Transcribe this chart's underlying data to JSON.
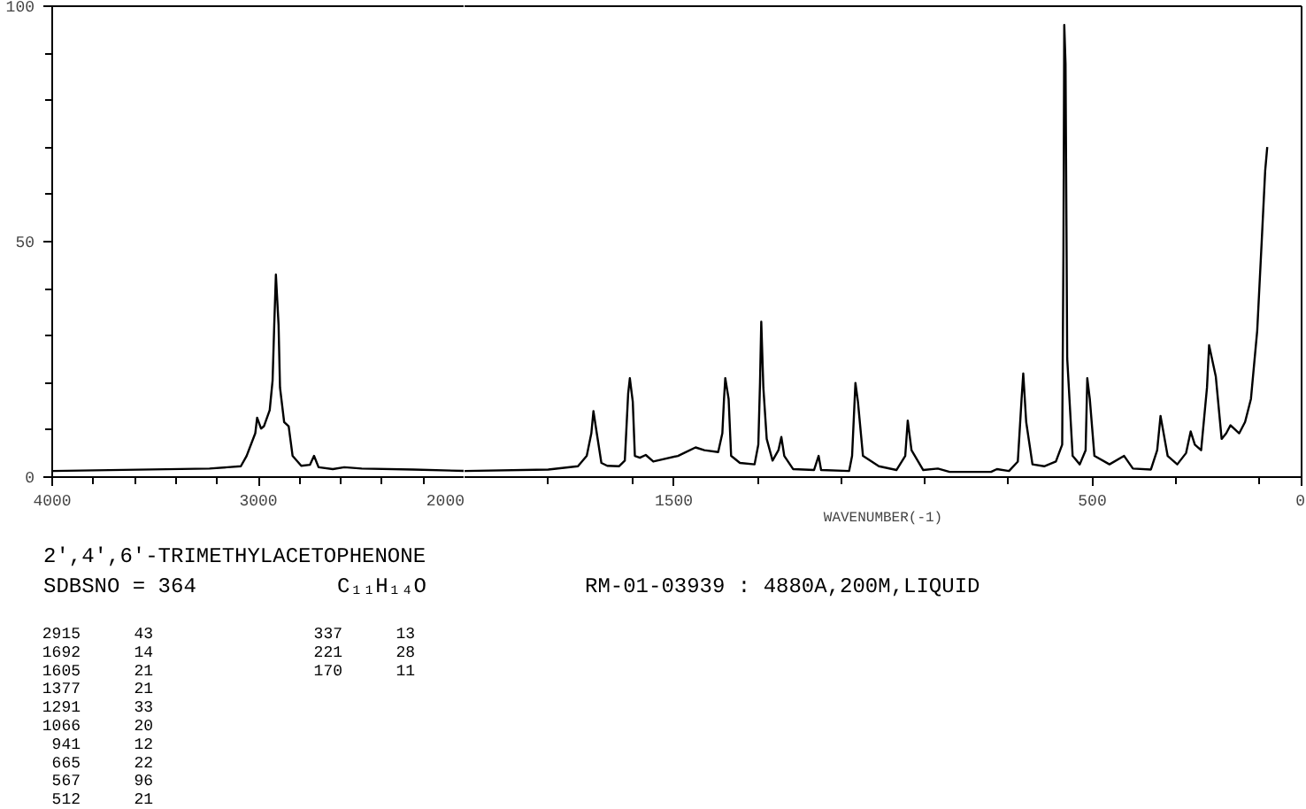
{
  "chart_data": [
    {
      "type": "line",
      "title": "2',4',6'-TRIMETHYLACETOPHENONE",
      "annotations": [
        "SDBSNO = 364",
        "C₁₁H₁₄O",
        "RM-01-03939 : 4880A,200M,LIQUID",
        "2915 43",
        "1692 14",
        "1605 21",
        "1377 21",
        "1291 33",
        "1066 20",
        "941 12",
        "665 22",
        "567 96",
        "512 21",
        "337 13",
        "221 28",
        "170 11"
      ],
      "x": [
        4000,
        3237,
        3085,
        3057,
        3015,
        3006,
        2987,
        2973,
        2945,
        2931,
        2923,
        2915,
        2902,
        2895,
        2875,
        2853,
        2834,
        2792,
        2750,
        2730,
        2708,
        2639,
        2583,
        2499,
        2249,
        2000
      ],
      "values": [
        1.3,
        1.8,
        2.3,
        4.5,
        9.3,
        12.6,
        10.3,
        10.8,
        14.2,
        20.5,
        32.3,
        43,
        32.3,
        19,
        11.7,
        10.8,
        4.5,
        2.4,
        2.6,
        4.5,
        2.1,
        1.7,
        2.1,
        1.8,
        1.6,
        1.3
      ],
      "color": "#000000",
      "xlim": [
        4000,
        2000
      ],
      "xticks": [
        4000,
        {
          "value": 3800,
          "label": null
        },
        {
          "value": 3600,
          "label": null
        },
        {
          "value": 3400,
          "label": null
        },
        {
          "value": 3200,
          "label": null
        },
        3000,
        {
          "value": 2800,
          "label": null
        },
        {
          "value": 2600,
          "label": null
        },
        {
          "value": 2400,
          "label": null
        },
        {
          "value": 2200,
          "label": null
        },
        2000
      ],
      "ylim": [
        0,
        100
      ],
      "yticks": [
        0,
        {
          "value": 10,
          "label": null
        },
        {
          "value": 20,
          "label": null
        },
        {
          "value": 30,
          "label": null
        },
        {
          "value": 40,
          "label": null
        },
        50,
        {
          "value": 60,
          "label": null
        },
        {
          "value": 70,
          "label": null
        },
        {
          "value": 80,
          "label": null
        },
        {
          "value": 90,
          "label": null
        },
        100
      ],
      "grid": false
    },
    {
      "type": "line",
      "xlabel": "WAVENUMBER(-1)",
      "x": [
        2000,
        1800,
        1729,
        1708,
        1697,
        1692,
        1684,
        1673,
        1659,
        1631,
        1617,
        1609,
        1605,
        1598,
        1593,
        1581,
        1567,
        1549,
        1490,
        1448,
        1427,
        1394,
        1384,
        1380,
        1377,
        1369,
        1363,
        1342,
        1307,
        1298,
        1294,
        1291,
        1286,
        1278,
        1264,
        1250,
        1243,
        1236,
        1215,
        1165,
        1154,
        1148,
        1081,
        1074,
        1066,
        1060,
        1048,
        1010,
        968,
        947,
        941,
        932,
        904,
        869,
        841,
        742,
        728,
        699,
        678,
        669,
        665,
        658,
        643,
        615,
        587,
        572,
        569,
        567,
        564,
        560,
        547,
        530,
        516,
        512,
        506,
        495,
        459,
        424,
        403,
        360,
        345,
        337,
        320,
        297,
        276,
        265,
        255,
        240,
        226,
        221,
        205,
        191,
        180,
        170,
        149,
        135,
        121,
        106,
        95,
        87,
        82
      ],
      "values": [
        1.3,
        1.6,
        2.3,
        4.5,
        9.3,
        14,
        9.3,
        3,
        2.4,
        2.3,
        3.5,
        17.8,
        21,
        16,
        4.5,
        4.1,
        4.7,
        3.3,
        4.5,
        6.3,
        5.7,
        5.3,
        9.3,
        16.6,
        21,
        16.6,
        4.5,
        3,
        2.7,
        6.9,
        20,
        33,
        19,
        8.1,
        3.5,
        5.7,
        8.5,
        4.5,
        1.7,
        1.5,
        4.5,
        1.5,
        1.3,
        4.5,
        20,
        16,
        4.5,
        2.3,
        1.5,
        4.5,
        12,
        5.7,
        1.5,
        1.8,
        1.1,
        1.1,
        1.7,
        1.3,
        3.3,
        16.6,
        22,
        11.7,
        2.7,
        2.3,
        3.3,
        6.9,
        48,
        96,
        87.8,
        25.2,
        4.5,
        2.7,
        5.7,
        21,
        16.6,
        4.5,
        2.7,
        4.5,
        1.8,
        1.6,
        5.7,
        13,
        4.5,
        2.7,
        5.1,
        9.7,
        6.9,
        5.7,
        19,
        28,
        21.4,
        8.1,
        9.3,
        11,
        9.3,
        11.7,
        16.6,
        31.1,
        50.5,
        65,
        70.1
      ],
      "color": "#000000",
      "xlim": [
        2000,
        0
      ],
      "xticks": [
        {
          "value": 1800,
          "label": null
        },
        {
          "value": 1600,
          "label": null
        },
        1500,
        {
          "value": 1300,
          "label": null
        },
        {
          "value": 1100,
          "label": null
        },
        {
          "value": 900,
          "label": null
        },
        {
          "value": 700,
          "label": null
        },
        500,
        {
          "value": 300,
          "label": null
        },
        {
          "value": 100,
          "label": null
        },
        0
      ],
      "ylim": [
        0,
        100
      ],
      "tick_labels": "x",
      "grid": false
    }
  ]
}
